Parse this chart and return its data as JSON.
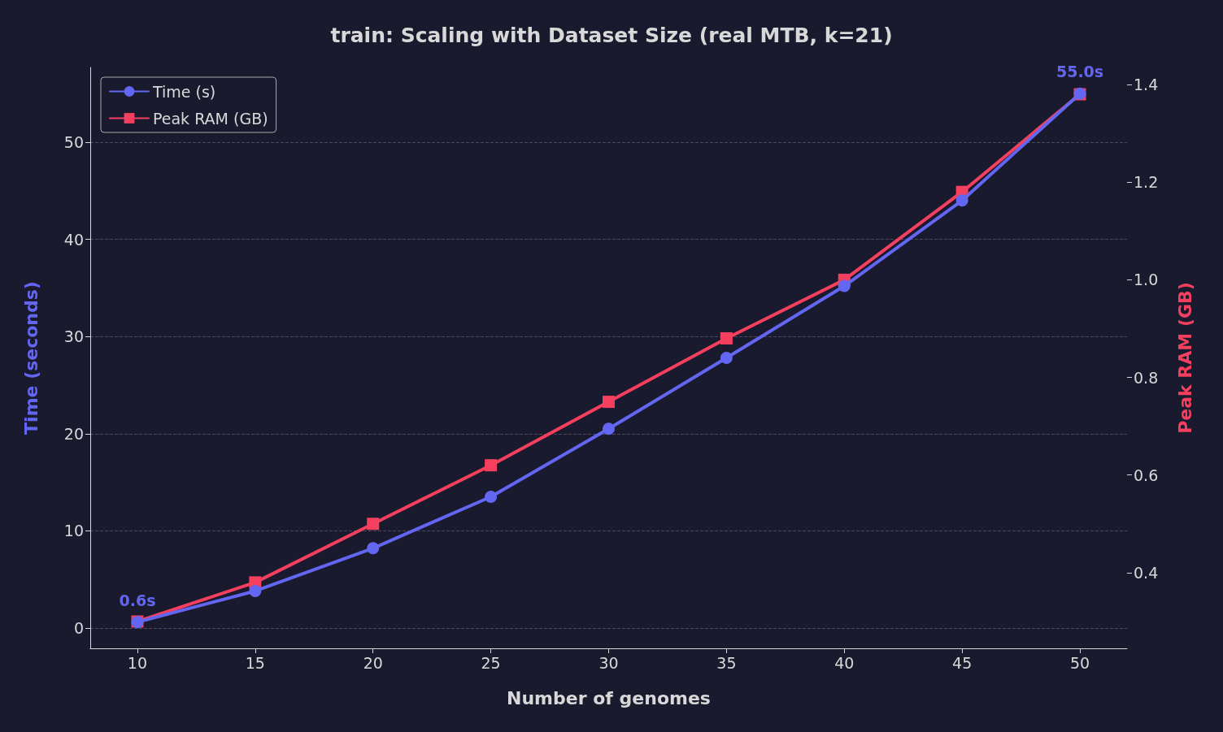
{
  "chart_data": {
    "type": "line",
    "title": "train: Scaling with Dataset Size (real MTB, k=21)",
    "xlabel": "Number of genomes",
    "ylabel": "Time (seconds)",
    "y2label": "Peak RAM (GB)",
    "x": [
      10,
      15,
      20,
      25,
      30,
      35,
      40,
      45,
      50
    ],
    "series": [
      {
        "name": "Time (s)",
        "color": "#6366f1",
        "marker": "circle",
        "values": [
          0.6,
          3.8,
          8.2,
          13.5,
          20.5,
          27.8,
          35.2,
          44.0,
          55.0
        ],
        "value_labels": [
          "0.6s",
          null,
          null,
          null,
          null,
          null,
          null,
          null,
          "55.0s"
        ]
      },
      {
        "name": "Peak RAM (GB)",
        "color": "#f43f5e",
        "marker": "square",
        "axis": "y2",
        "values": [
          0.3,
          0.38,
          0.5,
          0.62,
          0.75,
          0.88,
          1.0,
          1.18,
          1.38
        ]
      }
    ],
    "xlim": [
      8,
      52
    ],
    "xticks": [
      10,
      15,
      20,
      25,
      30,
      35,
      40,
      45,
      50
    ],
    "ylim": [
      -2.1,
      57.7
    ],
    "yticks": [
      0,
      10,
      20,
      30,
      40,
      50
    ],
    "y2lim": [
      0.245,
      1.435
    ],
    "y2ticks": [
      0.4,
      0.6,
      0.8,
      {
        "value": 1,
        "label": "1.0"
      },
      1.2,
      1.4
    ],
    "grid": "y",
    "legend": "top left",
    "line_style": "solid"
  }
}
